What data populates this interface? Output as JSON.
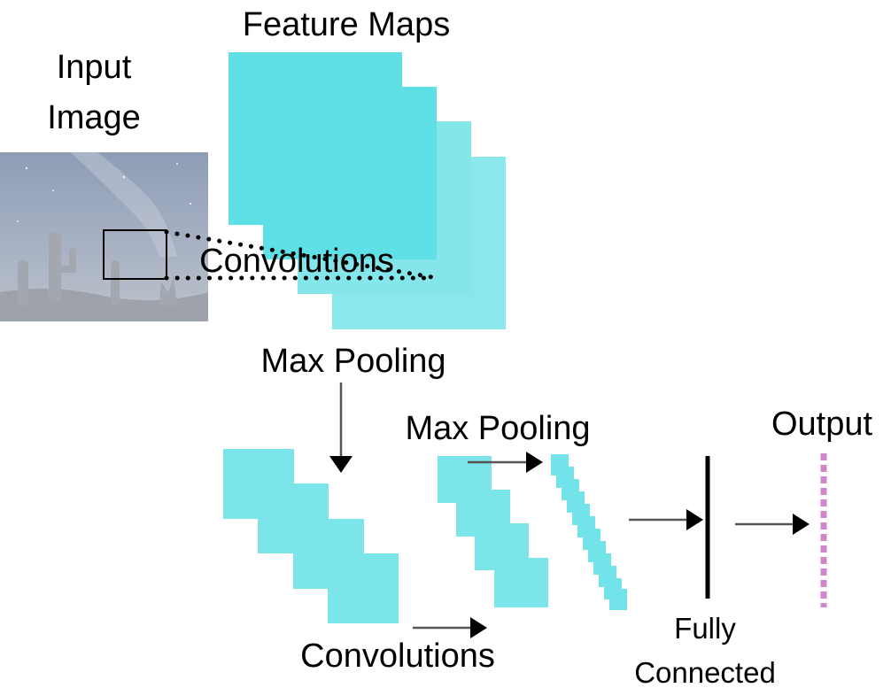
{
  "labels": {
    "input_line1": "Input",
    "input_line2": "Image",
    "feature_maps": "Feature Maps",
    "convolutions_top": "Convolutions",
    "max_pooling_1": "Max Pooling",
    "max_pooling_2": "Max Pooling",
    "convolutions_bottom": "Convolutions",
    "fully_line1": "Fully",
    "fully_line2": "Connected",
    "output": "Output"
  },
  "colors": {
    "feature_map": "#4fdde3",
    "feature_map_light": "#7fe6ea",
    "small_map": "#4fdde3",
    "output_nodes": "#cf86cc",
    "arrow": "#555555",
    "arrow_black": "#000000",
    "sky_top": "#8c9cb4",
    "sky_bottom": "#b9c0cb"
  }
}
